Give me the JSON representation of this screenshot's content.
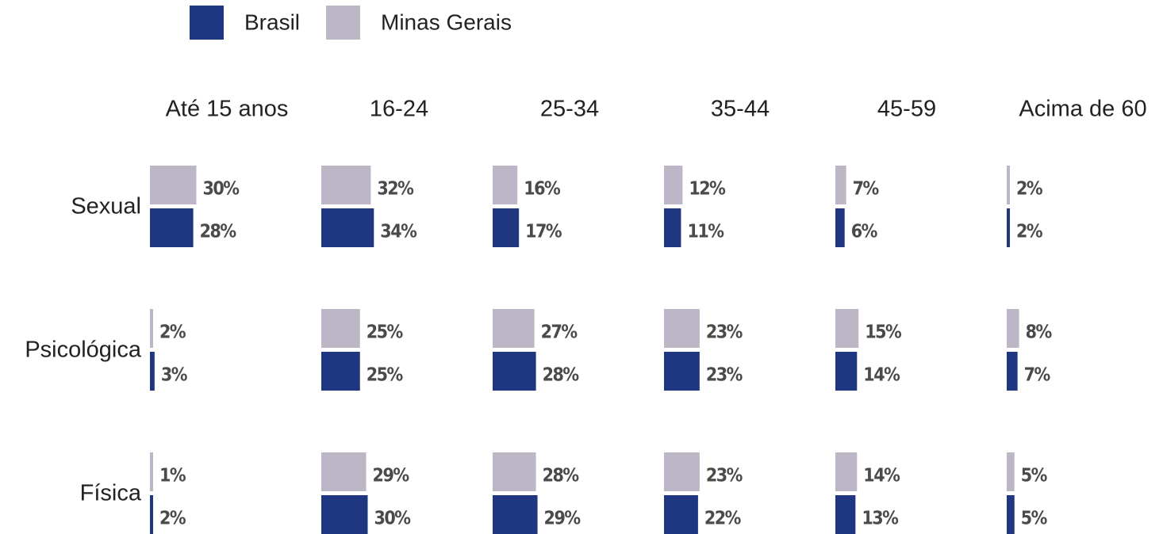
{
  "chart_data": {
    "type": "bar",
    "columns": [
      "Até 15 anos",
      "16-24",
      "25-34",
      "35-44",
      "45-59",
      "Acima de 60"
    ],
    "rows": [
      "Sexual",
      "Psicológica",
      "Física"
    ],
    "series": [
      {
        "name": "Minas Gerais",
        "color": "#bdb6c6",
        "values": [
          [
            30,
            32,
            16,
            12,
            7,
            2
          ],
          [
            2,
            25,
            27,
            23,
            15,
            8
          ],
          [
            1,
            29,
            28,
            23,
            14,
            5
          ]
        ],
        "value_labels": [
          [
            "30%",
            "32%",
            "16%",
            "12%",
            "7%",
            "2%"
          ],
          [
            "2%",
            "25%",
            "27%",
            "23%",
            "15%",
            "8%"
          ],
          [
            "1%",
            "29%",
            "28%",
            "23%",
            "14%",
            "5%"
          ]
        ]
      },
      {
        "name": "Brasil",
        "color": "#1f3781",
        "values": [
          [
            28,
            34,
            17,
            11,
            6,
            2
          ],
          [
            3,
            25,
            28,
            23,
            14,
            7
          ],
          [
            2,
            30,
            29,
            22,
            13,
            5
          ]
        ],
        "value_labels": [
          [
            "28%",
            "34%",
            "17%",
            "11%",
            "6%",
            "2%"
          ],
          [
            "3%",
            "25%",
            "28%",
            "23%",
            "14%",
            "7%"
          ],
          [
            "2%",
            "30%",
            "29%",
            "22%",
            "13%",
            "5%"
          ]
        ]
      }
    ]
  }
}
